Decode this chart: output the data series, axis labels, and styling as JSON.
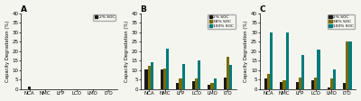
{
  "categories": [
    "NCA",
    "NMC",
    "LFP",
    "LCO",
    "LMO",
    "LTO"
  ],
  "panel_A": {
    "title": "A",
    "series": {
      "2% SOC": [
        1.2,
        0.05,
        0.05,
        0.05,
        0.05,
        0.05
      ]
    },
    "ylim": [
      0,
      40
    ],
    "yticks": [
      0,
      5,
      10,
      15,
      20,
      25,
      30,
      35,
      40
    ],
    "ylabel": "Capacity Degradation (%)"
  },
  "panel_B": {
    "title": "B",
    "series": {
      "2% SOC": [
        10.5,
        10.5,
        3.0,
        4.0,
        2.0,
        6.0
      ],
      "38% SOC": [
        12.0,
        11.0,
        5.5,
        5.5,
        3.0,
        17.0
      ],
      "100% SOC": [
        14.0,
        21.5,
        13.0,
        15.0,
        5.5,
        12.5
      ]
    },
    "ylim": [
      0,
      40
    ],
    "yticks": [
      0,
      5,
      10,
      15,
      20,
      25,
      30,
      35,
      40
    ],
    "ylabel": "Capacity Degradation (%)"
  },
  "panel_C": {
    "title": "C",
    "series": {
      "2% SOC": [
        5.5,
        3.5,
        3.5,
        4.5,
        1.0,
        3.0
      ],
      "38% SOC": [
        8.0,
        4.5,
        6.0,
        6.0,
        5.5,
        25.0
      ],
      "100% SOC": [
        30.0,
        30.0,
        18.0,
        21.0,
        10.5,
        25.0
      ]
    },
    "ylim": [
      0,
      40
    ],
    "yticks": [
      0,
      5,
      10,
      15,
      20,
      25,
      30,
      35,
      40
    ],
    "ylabel": "Capacity Degradation (%)"
  },
  "colors": {
    "2% SOC": "#1a1a1a",
    "38% SOC": "#7a6b00",
    "100% SOC": "#007a7a"
  },
  "bar_width": 0.18,
  "figsize": [
    4.0,
    1.12
  ],
  "dpi": 100,
  "bg_color": "#f5f5f0"
}
